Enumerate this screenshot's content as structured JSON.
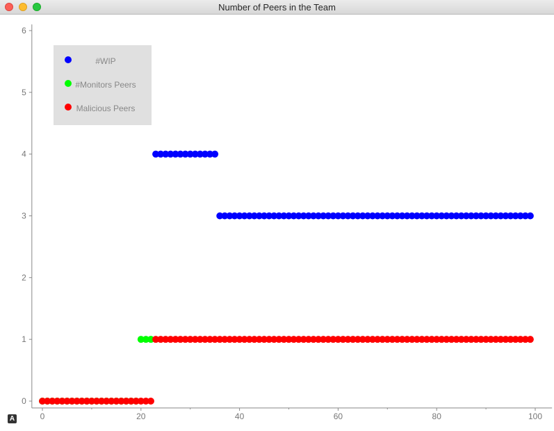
{
  "window": {
    "title": "Number of Peers in the Team"
  },
  "corner_icon": "A",
  "chart_data": {
    "type": "scatter",
    "title": "",
    "xlabel": "",
    "ylabel": "",
    "xlim": [
      -2,
      102
    ],
    "ylim": [
      -0.1,
      6.1
    ],
    "x_ticks": [
      0,
      20,
      40,
      60,
      80,
      100
    ],
    "y_ticks": [
      0,
      1,
      2,
      3,
      4,
      5,
      6
    ],
    "grid": false,
    "legend_position": "top-left",
    "series": [
      {
        "name": "#WIP",
        "color": "#0000ff",
        "points": [
          [
            23,
            4
          ],
          [
            24,
            4
          ],
          [
            25,
            4
          ],
          [
            26,
            4
          ],
          [
            27,
            4
          ],
          [
            28,
            4
          ],
          [
            29,
            4
          ],
          [
            30,
            4
          ],
          [
            31,
            4
          ],
          [
            32,
            4
          ],
          [
            33,
            4
          ],
          [
            34,
            4
          ],
          [
            35,
            4
          ],
          [
            36,
            3
          ],
          [
            37,
            3
          ],
          [
            38,
            3
          ],
          [
            39,
            3
          ],
          [
            40,
            3
          ],
          [
            41,
            3
          ],
          [
            42,
            3
          ],
          [
            43,
            3
          ],
          [
            44,
            3
          ],
          [
            45,
            3
          ],
          [
            46,
            3
          ],
          [
            47,
            3
          ],
          [
            48,
            3
          ],
          [
            49,
            3
          ],
          [
            50,
            3
          ],
          [
            51,
            3
          ],
          [
            52,
            3
          ],
          [
            53,
            3
          ],
          [
            54,
            3
          ],
          [
            55,
            3
          ],
          [
            56,
            3
          ],
          [
            57,
            3
          ],
          [
            58,
            3
          ],
          [
            59,
            3
          ],
          [
            60,
            3
          ],
          [
            61,
            3
          ],
          [
            62,
            3
          ],
          [
            63,
            3
          ],
          [
            64,
            3
          ],
          [
            65,
            3
          ],
          [
            66,
            3
          ],
          [
            67,
            3
          ],
          [
            68,
            3
          ],
          [
            69,
            3
          ],
          [
            70,
            3
          ],
          [
            71,
            3
          ],
          [
            72,
            3
          ],
          [
            73,
            3
          ],
          [
            74,
            3
          ],
          [
            75,
            3
          ],
          [
            76,
            3
          ],
          [
            77,
            3
          ],
          [
            78,
            3
          ],
          [
            79,
            3
          ],
          [
            80,
            3
          ],
          [
            81,
            3
          ],
          [
            82,
            3
          ],
          [
            83,
            3
          ],
          [
            84,
            3
          ],
          [
            85,
            3
          ],
          [
            86,
            3
          ],
          [
            87,
            3
          ],
          [
            88,
            3
          ],
          [
            89,
            3
          ],
          [
            90,
            3
          ],
          [
            91,
            3
          ],
          [
            92,
            3
          ],
          [
            93,
            3
          ],
          [
            94,
            3
          ],
          [
            95,
            3
          ],
          [
            96,
            3
          ],
          [
            97,
            3
          ],
          [
            98,
            3
          ],
          [
            99,
            3
          ]
        ]
      },
      {
        "name": "#Monitors Peers",
        "color": "#00ff00",
        "points": [
          [
            0,
            0
          ],
          [
            1,
            0
          ],
          [
            2,
            0
          ],
          [
            3,
            0
          ],
          [
            4,
            0
          ],
          [
            5,
            0
          ],
          [
            6,
            0
          ],
          [
            7,
            0
          ],
          [
            8,
            0
          ],
          [
            9,
            0
          ],
          [
            10,
            0
          ],
          [
            11,
            0
          ],
          [
            12,
            0
          ],
          [
            13,
            0
          ],
          [
            14,
            0
          ],
          [
            15,
            0
          ],
          [
            16,
            0
          ],
          [
            17,
            0
          ],
          [
            18,
            0
          ],
          [
            19,
            0
          ],
          [
            20,
            1
          ],
          [
            21,
            1
          ],
          [
            22,
            1
          ]
        ]
      },
      {
        "name": "Malicious Peers",
        "color": "#ff0000",
        "points": [
          [
            0,
            0
          ],
          [
            1,
            0
          ],
          [
            2,
            0
          ],
          [
            3,
            0
          ],
          [
            4,
            0
          ],
          [
            5,
            0
          ],
          [
            6,
            0
          ],
          [
            7,
            0
          ],
          [
            8,
            0
          ],
          [
            9,
            0
          ],
          [
            10,
            0
          ],
          [
            11,
            0
          ],
          [
            12,
            0
          ],
          [
            13,
            0
          ],
          [
            14,
            0
          ],
          [
            15,
            0
          ],
          [
            16,
            0
          ],
          [
            17,
            0
          ],
          [
            18,
            0
          ],
          [
            19,
            0
          ],
          [
            20,
            0
          ],
          [
            21,
            0
          ],
          [
            22,
            0
          ],
          [
            23,
            1
          ],
          [
            24,
            1
          ],
          [
            25,
            1
          ],
          [
            26,
            1
          ],
          [
            27,
            1
          ],
          [
            28,
            1
          ],
          [
            29,
            1
          ],
          [
            30,
            1
          ],
          [
            31,
            1
          ],
          [
            32,
            1
          ],
          [
            33,
            1
          ],
          [
            34,
            1
          ],
          [
            35,
            1
          ],
          [
            36,
            1
          ],
          [
            37,
            1
          ],
          [
            38,
            1
          ],
          [
            39,
            1
          ],
          [
            40,
            1
          ],
          [
            41,
            1
          ],
          [
            42,
            1
          ],
          [
            43,
            1
          ],
          [
            44,
            1
          ],
          [
            45,
            1
          ],
          [
            46,
            1
          ],
          [
            47,
            1
          ],
          [
            48,
            1
          ],
          [
            49,
            1
          ],
          [
            50,
            1
          ],
          [
            51,
            1
          ],
          [
            52,
            1
          ],
          [
            53,
            1
          ],
          [
            54,
            1
          ],
          [
            55,
            1
          ],
          [
            56,
            1
          ],
          [
            57,
            1
          ],
          [
            58,
            1
          ],
          [
            59,
            1
          ],
          [
            60,
            1
          ],
          [
            61,
            1
          ],
          [
            62,
            1
          ],
          [
            63,
            1
          ],
          [
            64,
            1
          ],
          [
            65,
            1
          ],
          [
            66,
            1
          ],
          [
            67,
            1
          ],
          [
            68,
            1
          ],
          [
            69,
            1
          ],
          [
            70,
            1
          ],
          [
            71,
            1
          ],
          [
            72,
            1
          ],
          [
            73,
            1
          ],
          [
            74,
            1
          ],
          [
            75,
            1
          ],
          [
            76,
            1
          ],
          [
            77,
            1
          ],
          [
            78,
            1
          ],
          [
            79,
            1
          ],
          [
            80,
            1
          ],
          [
            81,
            1
          ],
          [
            82,
            1
          ],
          [
            83,
            1
          ],
          [
            84,
            1
          ],
          [
            85,
            1
          ],
          [
            86,
            1
          ],
          [
            87,
            1
          ],
          [
            88,
            1
          ],
          [
            89,
            1
          ],
          [
            90,
            1
          ],
          [
            91,
            1
          ],
          [
            92,
            1
          ],
          [
            93,
            1
          ],
          [
            94,
            1
          ],
          [
            95,
            1
          ],
          [
            96,
            1
          ],
          [
            97,
            1
          ],
          [
            98,
            1
          ],
          [
            99,
            1
          ]
        ]
      }
    ]
  }
}
